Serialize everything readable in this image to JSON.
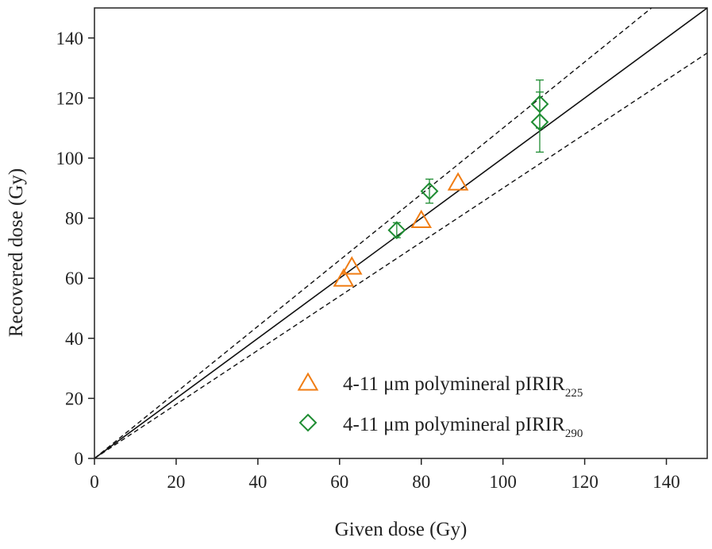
{
  "chart_data": {
    "type": "scatter",
    "xlabel": "Given dose (Gy)",
    "ylabel": "Recovered dose (Gy)",
    "xlim": [
      0,
      150
    ],
    "ylim": [
      0,
      150
    ],
    "xticks": [
      "0",
      "20",
      "40",
      "60",
      "80",
      "100",
      "120",
      "140"
    ],
    "yticks": [
      "0",
      "20",
      "40",
      "60",
      "80",
      "100",
      "120",
      "140"
    ],
    "grid": false,
    "legend_position": "bottom-right",
    "reference_lines": [
      {
        "style": "solid",
        "slope": 1.0
      },
      {
        "style": "dashed",
        "slope": 1.1
      },
      {
        "style": "dashed",
        "slope": 0.9
      }
    ],
    "series": [
      {
        "name_main": "4-11 μm polymineral pIRIR",
        "name_sub": "225",
        "marker": "triangle",
        "color": "#f07d14",
        "points": [
          {
            "x": 61,
            "y": 59.5
          },
          {
            "x": 63,
            "y": 63.5
          },
          {
            "x": 80,
            "y": 79
          },
          {
            "x": 89,
            "y": 91.5
          }
        ]
      },
      {
        "name_main": "4-11 μm polymineral pIRIR",
        "name_sub": "290",
        "marker": "diamond",
        "color": "#1e8c32",
        "points": [
          {
            "x": 74,
            "y": 76,
            "err": 2.5
          },
          {
            "x": 82,
            "y": 89,
            "err": 4
          },
          {
            "x": 109,
            "y": 118,
            "err": 8
          },
          {
            "x": 109,
            "y": 112,
            "err": 10
          }
        ]
      }
    ]
  }
}
